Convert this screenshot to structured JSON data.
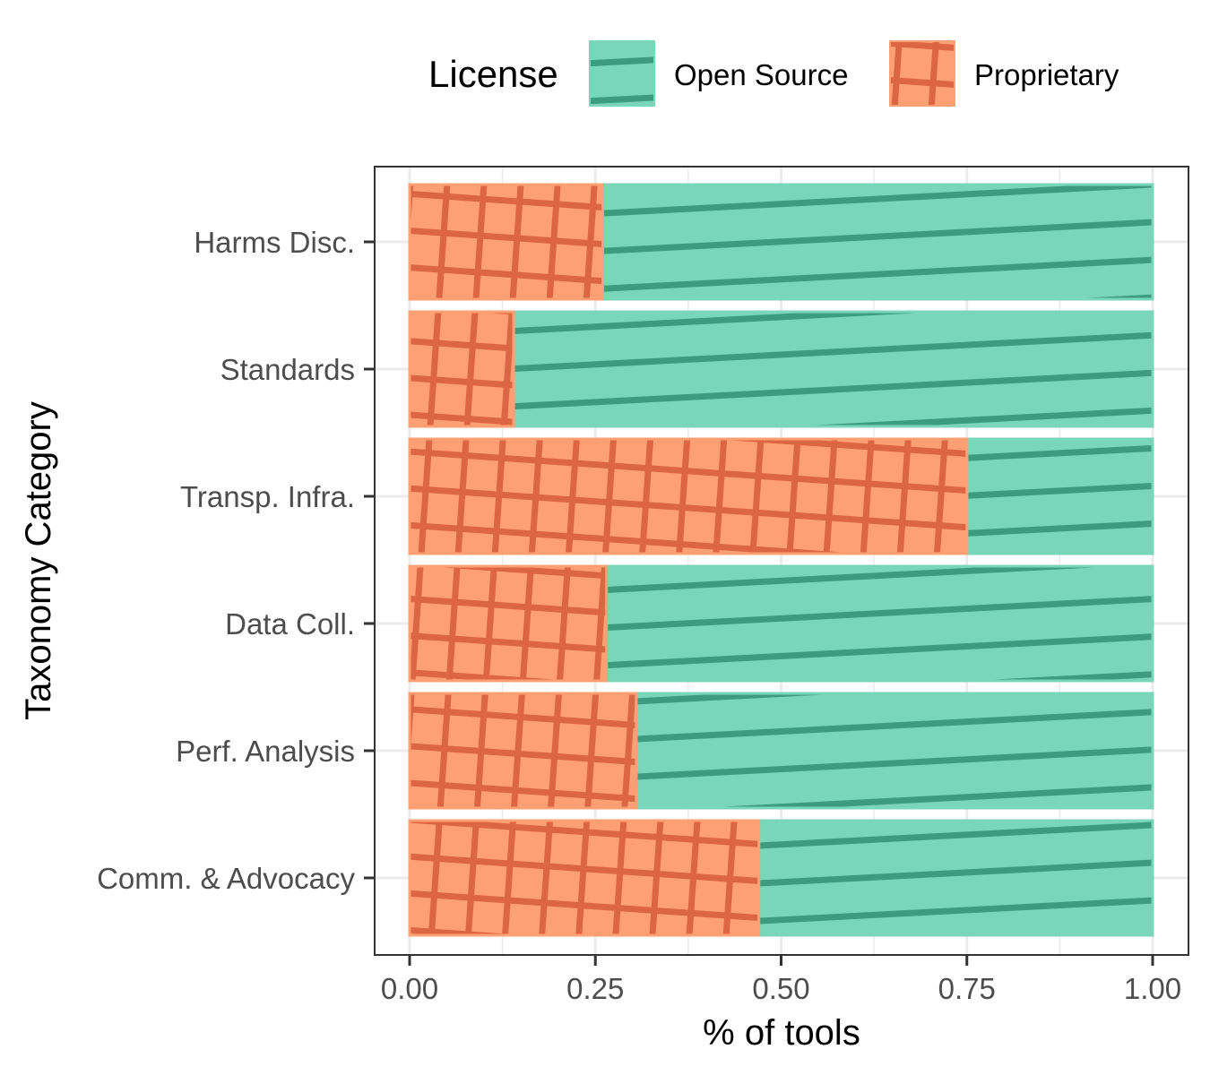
{
  "legend": {
    "title": "License",
    "position": "top",
    "items": [
      {
        "name": "Open Source",
        "fill": "#79D6B8",
        "pattern": "stripe",
        "pattern_color": "#3E9C7E"
      },
      {
        "name": "Proprietary",
        "fill": "#FFA074",
        "pattern": "crosshatch",
        "pattern_color": "#DC6641"
      }
    ]
  },
  "chart_data": {
    "type": "bar",
    "orientation": "horizontal",
    "stacked": "fill",
    "xlabel": "% of tools",
    "ylabel": "Taxonomy Category",
    "xlim": [
      0,
      1
    ],
    "xticks": [
      "0.00",
      "0.25",
      "0.50",
      "0.75",
      "1.00"
    ],
    "grid": true,
    "categories": [
      "Harms Disc.",
      "Standards",
      "Transp. Infra.",
      "Data Coll.",
      "Perf. Analysis",
      "Comm. & Advocacy"
    ],
    "series": [
      {
        "name": "Proprietary",
        "values": [
          0.26,
          0.14,
          0.75,
          0.265,
          0.305,
          0.47
        ]
      },
      {
        "name": "Open Source",
        "values": [
          0.74,
          0.86,
          0.25,
          0.735,
          0.695,
          0.53
        ]
      }
    ],
    "colors": {
      "Open Source": "#79D6B8",
      "Proprietary": "#FFA074",
      "axis": "#333333",
      "grid": "#EBEBEB",
      "tick_text": "#4D4D4D"
    }
  }
}
